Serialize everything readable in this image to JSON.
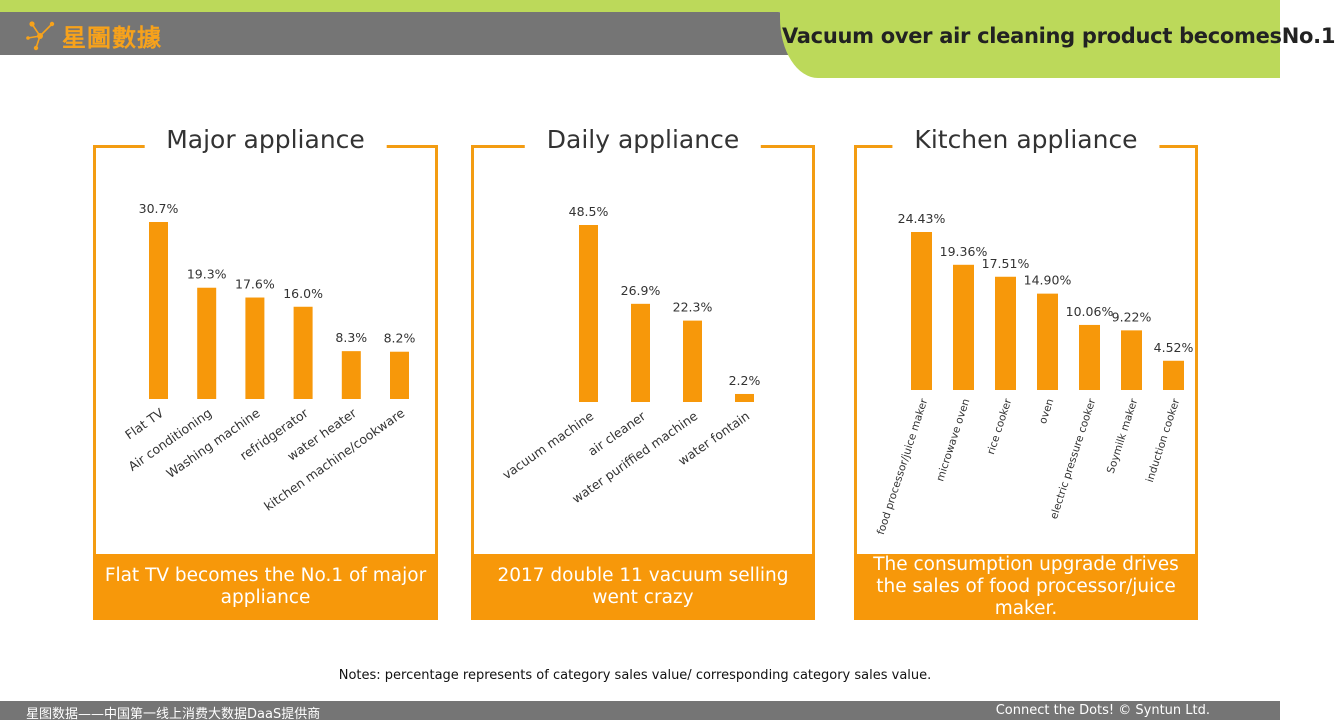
{
  "header": {
    "logo_text": "星圖數據",
    "title": "Vacuum over air cleaning product becomesNo.1"
  },
  "panels": [
    {
      "title": "Major appliance",
      "caption": "Flat TV becomes the No.1 of major appliance"
    },
    {
      "title": "Daily appliance",
      "caption": "2017 double 11 vacuum selling went crazy"
    },
    {
      "title": "Kitchen appliance",
      "caption": "The consumption upgrade drives the sales of food processor/juice maker."
    }
  ],
  "chart_data": [
    {
      "type": "bar",
      "title": "Major appliance",
      "categories": [
        "Flat TV",
        "Air conditioning",
        "Washing machine",
        "refridgerator",
        "water heater",
        "kitchen machine/cookware"
      ],
      "values": [
        30.7,
        19.3,
        17.6,
        16.0,
        8.3,
        8.2
      ],
      "value_labels": [
        "30.7%",
        "19.3%",
        "17.6%",
        "16.0%",
        "8.3%",
        "8.2%"
      ],
      "ylim": [
        0,
        30.7
      ],
      "xlabel": "",
      "ylabel": ""
    },
    {
      "type": "bar",
      "title": "Daily appliance",
      "categories": [
        "vacuum machine",
        "air cleaner",
        "water puriffied machine",
        "water fontain"
      ],
      "values": [
        48.5,
        26.9,
        22.3,
        2.2
      ],
      "value_labels": [
        "48.5%",
        "26.9%",
        "22.3%",
        "2.2%"
      ],
      "ylim": [
        0,
        48.5
      ],
      "xlabel": "",
      "ylabel": ""
    },
    {
      "type": "bar",
      "title": "Kitchen appliance",
      "categories": [
        "food processor/juice maker",
        "microwave oven",
        "rice cooker",
        "oven",
        "electric pressure cooker",
        "Soymilk maker",
        "induction cooker"
      ],
      "values": [
        24.43,
        19.36,
        17.51,
        14.9,
        10.06,
        9.22,
        4.52
      ],
      "value_labels": [
        "24.43%",
        "19.36%",
        "17.51%",
        "14.90%",
        "10.06%",
        "9.22%",
        "4.52%"
      ],
      "ylim": [
        0,
        24.43
      ],
      "xlabel": "",
      "ylabel": ""
    }
  ],
  "notes": "Notes: percentage represents of category sales value/ corresponding category sales value.",
  "footer": {
    "left": "星图数据——中国第一线上消费大数据DaaS提供商",
    "right": "Connect the Dots! © Syntun Ltd."
  },
  "colors": {
    "accent": "#f7980a",
    "header_green": "#bcd95a",
    "header_gray": "#757575"
  }
}
